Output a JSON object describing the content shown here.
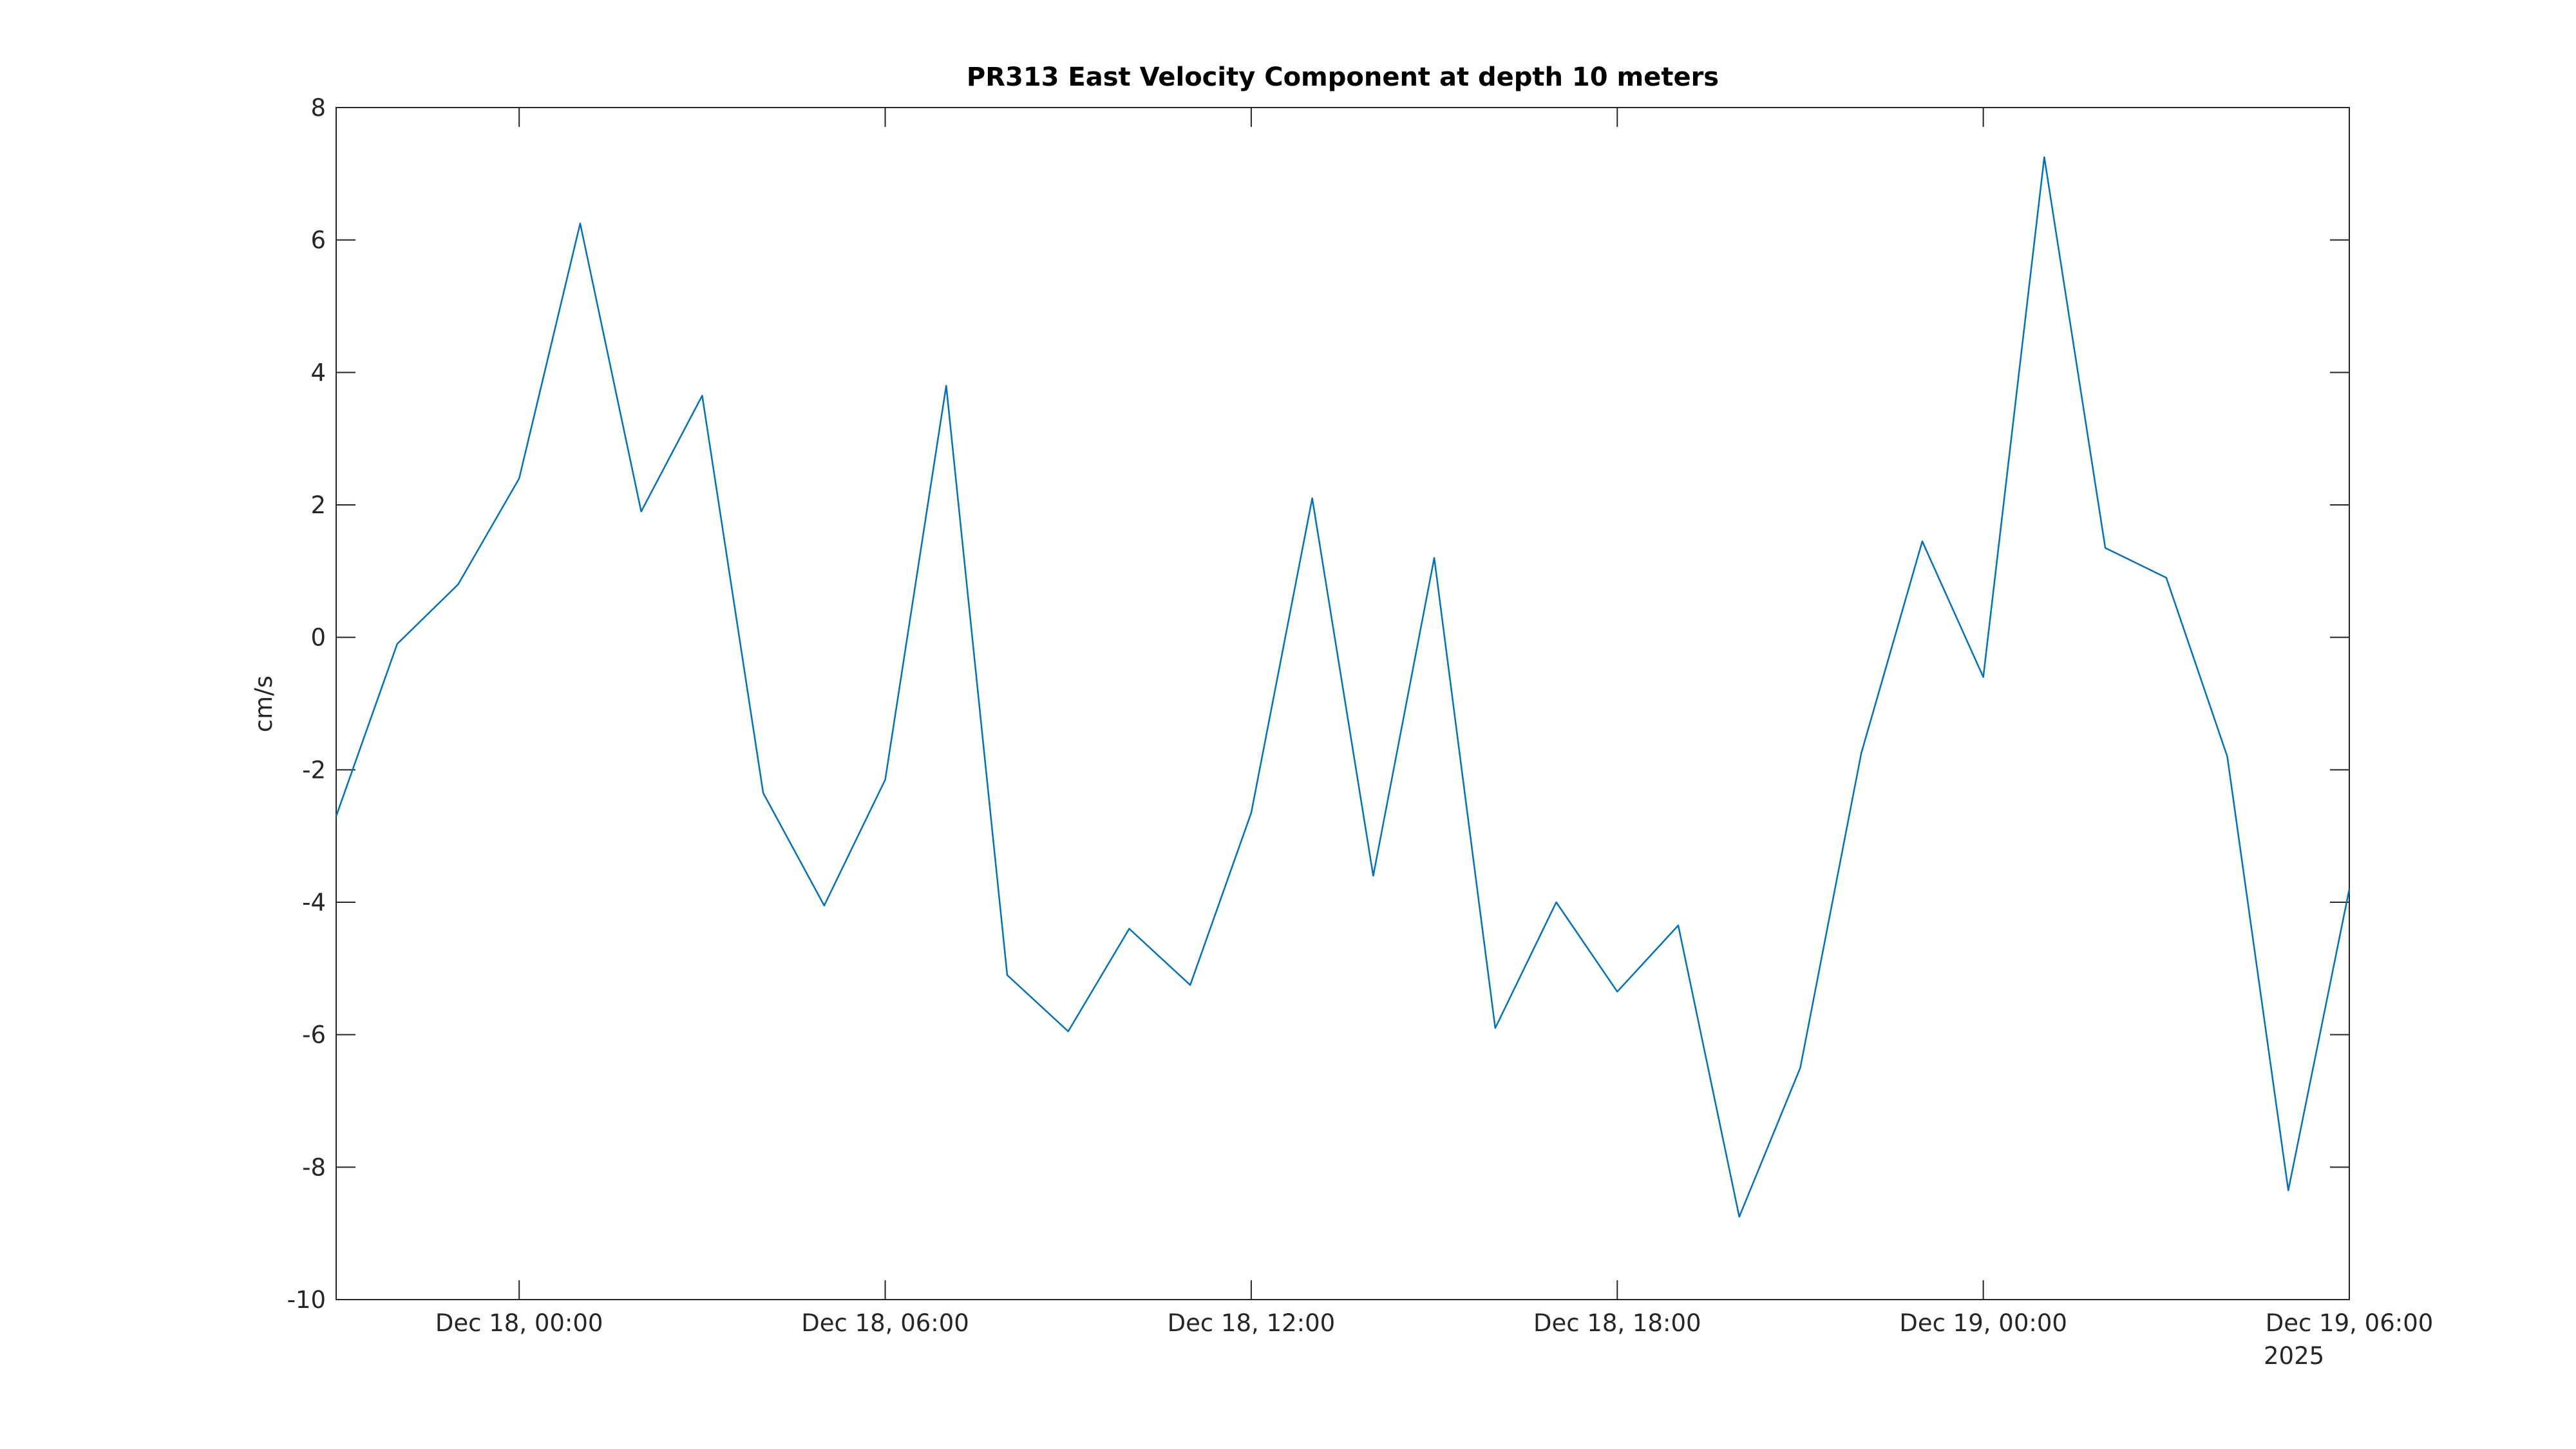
{
  "chart_data": {
    "type": "line",
    "title": "PR313 East Velocity Component at depth 10 meters",
    "y_label": "cm/s",
    "x_year_label": "2025",
    "x": [
      "2025-12-17T21:00",
      "2025-12-17T22:00",
      "2025-12-17T23:00",
      "2025-12-18T00:00",
      "2025-12-18T01:00",
      "2025-12-18T02:00",
      "2025-12-18T03:00",
      "2025-12-18T04:00",
      "2025-12-18T05:00",
      "2025-12-18T06:00",
      "2025-12-18T07:00",
      "2025-12-18T08:00",
      "2025-12-18T09:00",
      "2025-12-18T10:00",
      "2025-12-18T11:00",
      "2025-12-18T12:00",
      "2025-12-18T13:00",
      "2025-12-18T14:00",
      "2025-12-18T15:00",
      "2025-12-18T16:00",
      "2025-12-18T17:00",
      "2025-12-18T18:00",
      "2025-12-18T19:00",
      "2025-12-18T20:00",
      "2025-12-18T21:00",
      "2025-12-18T22:00",
      "2025-12-18T23:00",
      "2025-12-19T00:00",
      "2025-12-19T01:00",
      "2025-12-19T02:00",
      "2025-12-19T03:00",
      "2025-12-19T04:00",
      "2025-12-19T05:00",
      "2025-12-19T06:00"
    ],
    "series": [
      {
        "color": "#0072bd",
        "values": [
          -2.7,
          -0.1,
          0.8,
          2.4,
          6.25,
          1.9,
          3.65,
          -2.35,
          -4.05,
          -2.15,
          3.8,
          -5.1,
          -5.95,
          -4.4,
          -5.25,
          -2.65,
          2.1,
          -3.6,
          1.2,
          -5.9,
          -4.0,
          -5.35,
          -4.35,
          -8.75,
          -6.5,
          -1.75,
          1.45,
          -0.6,
          7.25,
          1.35,
          0.9,
          -1.8,
          -8.35,
          -3.8
        ]
      }
    ],
    "xlim": [
      "2025-12-17T21:00",
      "2025-12-19T06:00"
    ],
    "xticks": [
      {
        "value": "2025-12-18T00:00",
        "label": "Dec 18, 00:00"
      },
      {
        "value": "2025-12-18T06:00",
        "label": "Dec 18, 06:00"
      },
      {
        "value": "2025-12-18T12:00",
        "label": "Dec 18, 12:00"
      },
      {
        "value": "2025-12-18T18:00",
        "label": "Dec 18, 18:00"
      },
      {
        "value": "2025-12-19T00:00",
        "label": "Dec 19, 00:00"
      },
      {
        "value": "2025-12-19T06:00",
        "label": "Dec 19, 06:00"
      }
    ],
    "ylim": [
      -10,
      8
    ],
    "yticks": [
      -10,
      -8,
      -6,
      -4,
      -2,
      0,
      2,
      4,
      6,
      8
    ],
    "grid": false
  }
}
